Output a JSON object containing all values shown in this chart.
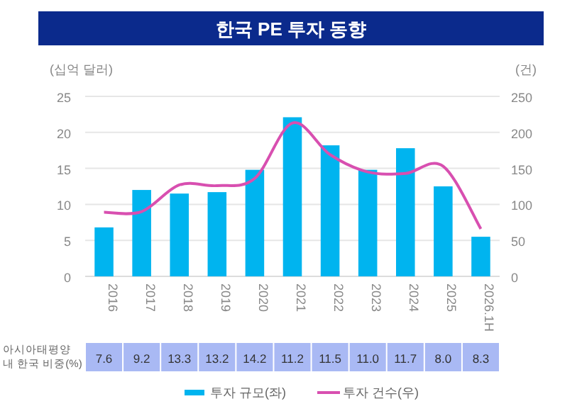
{
  "chart_data": {
    "type": "bar",
    "title": "한국 PE 투자 동향",
    "ylabel": "(십억 달러)",
    "y2label": "(건)",
    "categories": [
      "2016",
      "2017",
      "2018",
      "2019",
      "2020",
      "2021",
      "2022",
      "2023",
      "2024",
      "2025",
      "2026.1H"
    ],
    "series": [
      {
        "name": "투자 규모(좌)",
        "color": "#00b4ef",
        "values": [
          6.8,
          12.0,
          11.5,
          11.7,
          14.8,
          22.1,
          18.2,
          14.8,
          17.8,
          12.5,
          5.5
        ]
      },
      {
        "name": "투자 건수(우)",
        "type": "line",
        "axis": "y2",
        "color": "#d84fb0",
        "values": [
          89,
          90,
          127,
          126,
          136,
          213,
          169,
          145,
          143,
          153,
          66
        ]
      }
    ],
    "annotations": [
      "아시아태평양 내 한국 비중(%)",
      "7.6",
      "9.2",
      "13.3",
      "13.2",
      "14.2",
      "11.2",
      "11.5",
      "11.0",
      "11.7",
      "8.0",
      "8.3"
    ],
    "ylim": [
      0,
      25
    ],
    "yticks": [
      0,
      5,
      10,
      15,
      20,
      25
    ],
    "y2lim": [
      0,
      250
    ],
    "y2ticks": [
      0,
      50,
      100,
      150,
      200,
      250
    ],
    "grid": "y",
    "legend": "bottom",
    "marker": "none",
    "line_style": "solid"
  }
}
